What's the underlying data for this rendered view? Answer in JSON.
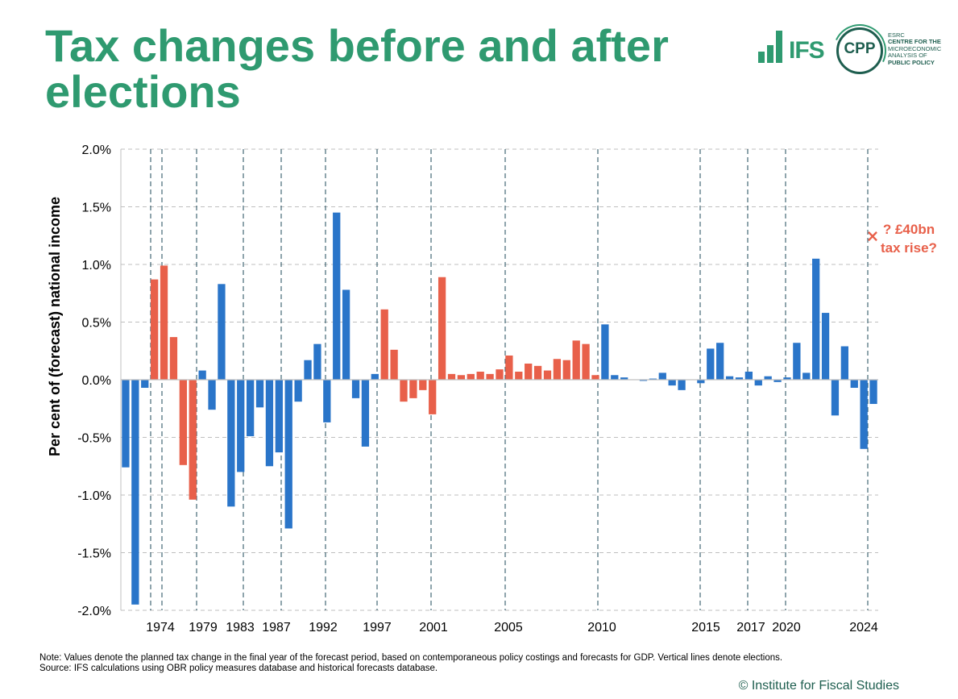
{
  "title": "Tax changes before and after elections",
  "logos": {
    "ifs_text": "IFS",
    "cpp_text": "CPP",
    "cpp_lines": [
      "ESRC",
      "CENTRE FOR THE",
      "MICROECONOMIC",
      "ANALYSIS OF",
      "PUBLIC POLICY"
    ]
  },
  "colors": {
    "title": "#2f9a70",
    "blue": "#2a75c9",
    "orange": "#e8604a",
    "logo_dark": "#1e5e4f"
  },
  "chart_data": {
    "type": "bar",
    "ylabel": "Per cent of (forecast) national income",
    "ylim": [
      -2.0,
      2.0
    ],
    "yticks": [
      2.0,
      1.5,
      1.0,
      0.5,
      0.0,
      -0.5,
      -1.0,
      -1.5,
      -2.0
    ],
    "ytick_labels": [
      "2.0%",
      "1.5%",
      "1.0%",
      "0.5%",
      "0.0%",
      "-0.5%",
      "-1.0%",
      "-1.5%",
      "-2.0%"
    ],
    "grid": true,
    "election_labels": [
      "1974",
      "1979",
      "1983",
      "1987",
      "1992",
      "1997",
      "2001",
      "2005",
      "2010",
      "2015",
      "2017",
      "2020",
      "2024"
    ],
    "values": [
      -0.76,
      -1.95,
      -0.07,
      0.87,
      0.99,
      0.37,
      -0.74,
      -1.04,
      0.08,
      -0.26,
      0.83,
      -1.1,
      -0.8,
      -0.49,
      -0.24,
      -0.75,
      -0.63,
      -1.29,
      -0.19,
      0.17,
      0.31,
      -0.37,
      1.45,
      0.78,
      -0.16,
      -0.58,
      0.05,
      0.61,
      0.26,
      -0.19,
      -0.16,
      -0.09,
      -0.3,
      0.89,
      0.05,
      0.04,
      0.05,
      0.07,
      0.05,
      0.09,
      0.21,
      0.07,
      0.14,
      0.12,
      0.08,
      0.18,
      0.17,
      0.34,
      0.31,
      0.04,
      0.48,
      0.04,
      0.02,
      0.0,
      -0.01,
      0.01,
      0.06,
      -0.05,
      -0.09,
      0.0,
      -0.03,
      0.27,
      0.32,
      0.03,
      0.02,
      0.07,
      -0.05,
      0.03,
      -0.02,
      0.02,
      0.32,
      0.06,
      1.05,
      0.58,
      -0.31,
      0.29,
      -0.07,
      -0.6,
      -0.21
    ],
    "bar_colors": [
      "blue",
      "blue",
      "blue",
      "orange",
      "orange",
      "orange",
      "orange",
      "orange",
      "blue",
      "blue",
      "blue",
      "blue",
      "blue",
      "blue",
      "blue",
      "blue",
      "blue",
      "blue",
      "blue",
      "blue",
      "blue",
      "blue",
      "blue",
      "blue",
      "blue",
      "blue",
      "blue",
      "orange",
      "orange",
      "orange",
      "orange",
      "orange",
      "orange",
      "orange",
      "orange",
      "orange",
      "orange",
      "orange",
      "orange",
      "orange",
      "orange",
      "orange",
      "orange",
      "orange",
      "orange",
      "orange",
      "orange",
      "orange",
      "orange",
      "orange",
      "blue",
      "blue",
      "blue",
      "blue",
      "blue",
      "blue",
      "blue",
      "blue",
      "blue",
      "blue",
      "blue",
      "blue",
      "blue",
      "blue",
      "blue",
      "blue",
      "blue",
      "blue",
      "blue",
      "blue",
      "blue",
      "blue",
      "blue",
      "blue",
      "blue",
      "blue",
      "blue",
      "blue",
      "blue"
    ],
    "annotation": {
      "marker": "×",
      "value": 1.25,
      "lines": [
        "? £40bn",
        "tax rise?"
      ]
    }
  },
  "note_lines": [
    "Note: Values denote the planned tax change in the final year of the forecast period, based on contemporaneous policy costings and forecasts for GDP. Vertical lines denote elections.",
    "Source: IFS calculations using OBR policy measures database and historical forecasts database."
  ],
  "copyright": "© Institute for Fiscal Studies"
}
